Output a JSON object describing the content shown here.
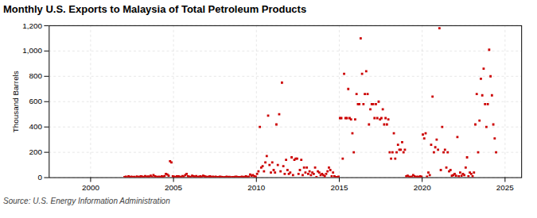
{
  "chart_data": {
    "type": "scatter",
    "title": "Monthly U.S. Exports to Malaysia of Total Petroleum Products",
    "ylabel": "Thousand Barrels",
    "source": "Source: U.S. Energy Information Administration",
    "color": "#cc0000",
    "marker": "square",
    "grid": true,
    "xlim": [
      1997.5,
      2026.0
    ],
    "xticks": [
      2000,
      2005,
      2010,
      2015,
      2020,
      2025
    ],
    "ylim": [
      0,
      1200
    ],
    "yticks": [
      0,
      200,
      400,
      600,
      800,
      {
        "value": 1000,
        "label": "1,000"
      },
      {
        "value": 1200,
        "label": "1,200"
      }
    ],
    "x": [
      2002.0416666666667,
      2002.125,
      2002.2083333333333,
      2002.2916666666667,
      2002.375,
      2002.4583333333333,
      2002.5416666666667,
      2002.625,
      2002.7083333333333,
      2002.7916666666667,
      2002.875,
      2002.9583333333333,
      2003.0416666666667,
      2003.125,
      2003.2083333333333,
      2003.2916666666667,
      2003.375,
      2003.4583333333333,
      2003.5416666666667,
      2003.625,
      2003.7083333333333,
      2003.7916666666667,
      2003.875,
      2003.9583333333333,
      2004.0416666666667,
      2004.125,
      2004.2083333333333,
      2004.2916666666667,
      2004.375,
      2004.4583333333333,
      2004.5416666666667,
      2004.625,
      2004.7083333333333,
      2004.7916666666667,
      2004.875,
      2004.9583333333333,
      2005.0416666666667,
      2005.125,
      2005.2083333333333,
      2005.2916666666667,
      2005.375,
      2005.4583333333333,
      2005.5416666666667,
      2005.625,
      2005.7083333333333,
      2005.7916666666667,
      2005.875,
      2005.9583333333333,
      2006.0416666666667,
      2006.125,
      2006.2083333333333,
      2006.2916666666667,
      2006.375,
      2006.4583333333333,
      2006.5416666666667,
      2006.625,
      2006.7083333333333,
      2006.7916666666667,
      2006.875,
      2006.9583333333333,
      2007.0416666666667,
      2007.125,
      2007.2083333333333,
      2007.2916666666667,
      2007.375,
      2007.4583333333333,
      2007.5416666666667,
      2007.625,
      2007.7083333333333,
      2007.7916666666667,
      2007.875,
      2007.9583333333333,
      2008.0416666666667,
      2008.125,
      2008.2083333333333,
      2008.2916666666667,
      2008.375,
      2008.4583333333333,
      2008.5416666666667,
      2008.625,
      2008.7083333333333,
      2008.7916666666667,
      2008.875,
      2008.9583333333333,
      2009.0416666666667,
      2009.125,
      2009.2083333333333,
      2009.2916666666667,
      2009.375,
      2009.4583333333333,
      2009.5416666666667,
      2009.625,
      2009.7083333333333,
      2009.7916666666667,
      2009.875,
      2009.9583333333333,
      2010.0416666666667,
      2010.125,
      2010.2083333333333,
      2010.2916666666667,
      2010.375,
      2010.4583333333333,
      2010.5416666666667,
      2010.625,
      2010.7083333333333,
      2010.7916666666667,
      2010.875,
      2010.9583333333333,
      2011.0416666666667,
      2011.125,
      2011.2083333333333,
      2011.2916666666667,
      2011.375,
      2011.4583333333333,
      2011.5416666666667,
      2011.625,
      2011.7083333333333,
      2011.7916666666667,
      2011.875,
      2011.9583333333333,
      2012.0416666666667,
      2012.125,
      2012.2083333333333,
      2012.2916666666667,
      2012.375,
      2012.4583333333333,
      2012.5416666666667,
      2012.625,
      2012.7083333333333,
      2012.7916666666667,
      2012.875,
      2012.9583333333333,
      2013.0416666666667,
      2013.125,
      2013.2083333333333,
      2013.2916666666667,
      2013.375,
      2013.4583333333333,
      2013.5416666666667,
      2013.625,
      2013.7083333333333,
      2013.7916666666667,
      2013.875,
      2013.9583333333333,
      2014.0416666666667,
      2014.125,
      2014.2083333333333,
      2014.2916666666667,
      2014.375,
      2014.4583333333333,
      2014.5416666666667,
      2014.625,
      2014.7083333333333,
      2014.7916666666667,
      2014.875,
      2014.9583333333333,
      2015.0416666666667,
      2015.125,
      2015.2083333333333,
      2015.2916666666667,
      2015.375,
      2015.4583333333333,
      2015.5416666666667,
      2015.625,
      2015.7083333333333,
      2015.7916666666667,
      2015.875,
      2015.9583333333333,
      2016.0416666666667,
      2016.125,
      2016.2083333333333,
      2016.2916666666667,
      2016.375,
      2016.4583333333333,
      2016.5416666666667,
      2016.625,
      2016.7083333333333,
      2016.7916666666667,
      2016.875,
      2016.9583333333333,
      2017.0416666666667,
      2017.125,
      2017.2083333333333,
      2017.2916666666667,
      2017.375,
      2017.4583333333333,
      2017.5416666666667,
      2017.625,
      2017.7083333333333,
      2017.7916666666667,
      2017.875,
      2017.9583333333333,
      2018.0416666666667,
      2018.125,
      2018.2083333333333,
      2018.2916666666667,
      2018.375,
      2018.4583333333333,
      2018.5416666666667,
      2018.625,
      2018.7083333333333,
      2018.7916666666667,
      2018.875,
      2018.9583333333333,
      2019.0416666666667,
      2019.125,
      2019.2083333333333,
      2019.2916666666667,
      2019.375,
      2019.4583333333333,
      2019.5416666666667,
      2019.625,
      2019.7083333333333,
      2019.7916666666667,
      2019.875,
      2019.9583333333333,
      2020.0416666666667,
      2020.125,
      2020.2083333333333,
      2020.2916666666667,
      2020.375,
      2020.4583333333333,
      2020.5416666666667,
      2020.625,
      2020.7083333333333,
      2020.7916666666667,
      2020.875,
      2020.9583333333333,
      2021.0416666666667,
      2021.125,
      2021.2083333333333,
      2021.2916666666667,
      2021.375,
      2021.4583333333333,
      2021.5416666666667,
      2021.625,
      2021.7083333333333,
      2021.7916666666667,
      2021.875,
      2021.9583333333333,
      2022.0416666666667,
      2022.125,
      2022.2083333333333,
      2022.2916666666667,
      2022.375,
      2022.4583333333333,
      2022.5416666666667,
      2022.625,
      2022.7083333333333,
      2022.7916666666667,
      2022.875,
      2022.9583333333333,
      2023.0416666666667,
      2023.125,
      2023.2083333333333,
      2023.2916666666667,
      2023.375,
      2023.4583333333333,
      2023.5416666666667,
      2023.625,
      2023.7083333333333,
      2023.7916666666667,
      2023.875,
      2023.9583333333333,
      2024.0416666666667,
      2024.125,
      2024.2083333333333,
      2024.2916666666667,
      2024.375,
      2024.4583333333333
    ],
    "values": [
      5,
      8,
      3,
      10,
      5,
      7,
      4,
      6,
      3,
      9,
      5,
      8,
      10,
      8,
      5,
      12,
      6,
      9,
      7,
      15,
      5,
      20,
      10,
      8,
      5,
      8,
      5,
      10,
      8,
      12,
      30,
      25,
      15,
      130,
      120,
      10,
      8,
      5,
      10,
      10,
      8,
      5,
      12,
      7,
      20,
      30,
      10,
      8,
      5,
      15,
      10,
      8,
      12,
      5,
      8,
      10,
      6,
      15,
      10,
      8,
      5,
      8,
      10,
      5,
      8,
      5,
      8,
      5,
      5,
      8,
      6,
      5,
      3,
      5,
      8,
      4,
      6,
      3,
      5,
      4,
      6,
      8,
      5,
      4,
      5,
      8,
      4,
      6,
      10,
      5,
      8,
      25,
      15,
      20,
      10,
      8,
      30,
      50,
      400,
      80,
      90,
      50,
      120,
      170,
      490,
      100,
      40,
      120,
      60,
      40,
      420,
      100,
      500,
      50,
      750,
      90,
      30,
      140,
      60,
      30,
      40,
      160,
      20,
      140,
      150,
      150,
      30,
      60,
      140,
      20,
      80,
      40,
      80,
      30,
      50,
      20,
      40,
      30,
      80,
      5,
      50,
      40,
      20,
      30,
      20,
      10,
      30,
      50,
      80,
      60,
      10,
      40,
      10,
      5,
      5,
      8,
      470,
      470,
      150,
      820,
      470,
      470,
      700,
      470,
      460,
      350,
      200,
      460,
      660,
      580,
      580,
      1100,
      820,
      580,
      660,
      840,
      660,
      420,
      540,
      580,
      580,
      470,
      580,
      470,
      600,
      460,
      470,
      540,
      420,
      470,
      420,
      460,
      200,
      150,
      200,
      350,
      150,
      200,
      260,
      220,
      220,
      280,
      200,
      220,
      10,
      15,
      8,
      5,
      8,
      20,
      10,
      5,
      8,
      5,
      10,
      8,
      340,
      310,
      350,
      8,
      40,
      20,
      260,
      640,
      200,
      240,
      300,
      220,
      1180,
      60,
      400,
      200,
      220,
      80,
      200,
      50,
      60,
      15,
      20,
      30,
      15,
      320,
      10,
      40,
      15,
      30,
      20,
      80,
      160,
      10,
      40,
      30,
      10,
      40,
      420,
      660,
      200,
      450,
      780,
      650,
      860,
      580,
      400,
      580,
      1010,
      800,
      650,
      420,
      310,
      200
    ]
  }
}
